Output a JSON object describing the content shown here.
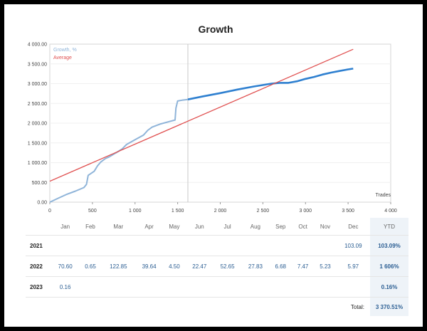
{
  "chart_data": {
    "type": "line",
    "title": "Growth",
    "xlabel": "Trades",
    "ylabel": "",
    "xlim": [
      0,
      4000
    ],
    "ylim": [
      0,
      4000
    ],
    "x_ticks": [
      "0",
      "500",
      "1 000",
      "1 500",
      "2 000",
      "2 500",
      "3 000",
      "3 500",
      "4 000"
    ],
    "y_ticks": [
      "0.00",
      "500.00",
      "1 000.00",
      "1 500.00",
      "2 000.00",
      "2 500.00",
      "3 000.00",
      "3 500.00",
      "4 000.00"
    ],
    "marker_x": 1620,
    "series": [
      {
        "name": "Growth, %",
        "color": "#8fb4d9",
        "x": [
          0,
          100,
          200,
          300,
          400,
          430,
          450,
          520,
          560,
          600,
          650,
          700,
          800,
          850,
          900,
          1000,
          1050,
          1100,
          1150,
          1200,
          1300,
          1400,
          1470,
          1480,
          1500,
          1550,
          1620
        ],
        "y": [
          0,
          100,
          200,
          280,
          370,
          450,
          680,
          780,
          920,
          1020,
          1100,
          1150,
          1280,
          1350,
          1460,
          1580,
          1640,
          1700,
          1820,
          1900,
          1980,
          2040,
          2080,
          2380,
          2560,
          2580,
          2600
        ]
      },
      {
        "name": "",
        "color": "#2f80d0",
        "x": [
          1620,
          1800,
          2000,
          2200,
          2400,
          2600,
          2700,
          2800,
          2900,
          3000,
          3100,
          3200,
          3300,
          3400,
          3500,
          3560
        ],
        "y": [
          2600,
          2680,
          2760,
          2850,
          2930,
          3000,
          3020,
          3020,
          3060,
          3120,
          3170,
          3230,
          3280,
          3320,
          3360,
          3380
        ]
      },
      {
        "name": "Average",
        "color": "#e05050",
        "x": [
          0,
          3560
        ],
        "y": [
          530,
          3870
        ]
      }
    ]
  },
  "table": {
    "months": [
      "Jan",
      "Feb",
      "Mar",
      "Apr",
      "May",
      "Jun",
      "Jul",
      "Aug",
      "Sep",
      "Oct",
      "Nov",
      "Dec"
    ],
    "ytd_label": "YTD",
    "rows": [
      {
        "year": "2021",
        "values": [
          "",
          "",
          "",
          "",
          "",
          "",
          "",
          "",
          "",
          "",
          "",
          "103.09"
        ],
        "ytd": "103.09%"
      },
      {
        "year": "2022",
        "values": [
          "70.60",
          "0.65",
          "122.85",
          "39.64",
          "4.50",
          "22.47",
          "52.65",
          "27.83",
          "6.68",
          "7.47",
          "5.23",
          "5.97"
        ],
        "ytd": "1 606%"
      },
      {
        "year": "2023",
        "values": [
          "0.16",
          "",
          "",
          "",
          "",
          "",
          "",
          "",
          "",
          "",
          "",
          ""
        ],
        "ytd": "0.16%"
      }
    ],
    "total_label": "Total:",
    "total_value": "3 370.51%"
  }
}
